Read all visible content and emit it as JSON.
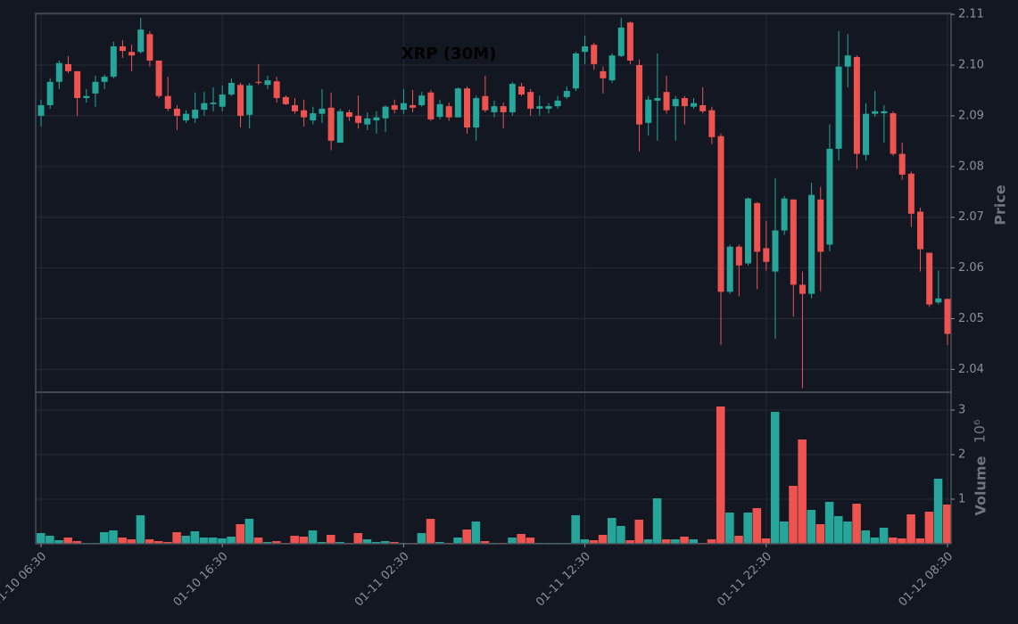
{
  "chart_data": {
    "type": "candlestick",
    "title": "XRP (30M)",
    "categories": [
      "01-10 06:30",
      null,
      null,
      null,
      null,
      null,
      null,
      null,
      null,
      null,
      null,
      null,
      null,
      null,
      null,
      null,
      null,
      null,
      null,
      null,
      "01-10 16:30",
      null,
      null,
      null,
      null,
      null,
      null,
      null,
      null,
      null,
      null,
      null,
      null,
      null,
      null,
      null,
      null,
      null,
      null,
      null,
      "01-11 02:30",
      null,
      null,
      null,
      null,
      null,
      null,
      null,
      null,
      null,
      null,
      null,
      null,
      null,
      null,
      null,
      null,
      null,
      null,
      null,
      "01-11 12:30",
      null,
      null,
      null,
      null,
      null,
      null,
      null,
      null,
      null,
      null,
      null,
      null,
      null,
      null,
      null,
      null,
      null,
      null,
      null,
      "01-11 22:30",
      null,
      null,
      null,
      null,
      null,
      null,
      null,
      null,
      null,
      null,
      null,
      null,
      null,
      null,
      null,
      null,
      null,
      null,
      null,
      "01-12 08:30"
    ],
    "open": [
      2.09,
      2.0921,
      2.0967,
      2.1002,
      2.0988,
      2.0935,
      2.0944,
      2.0967,
      2.0977,
      2.1037,
      2.1026,
      2.1026,
      2.1061,
      2.1009,
      2.0939,
      2.0914,
      2.0891,
      2.0895,
      2.0912,
      2.0923,
      2.0918,
      2.0942,
      2.0961,
      2.0902,
      2.0967,
      2.0961,
      2.0968,
      2.0937,
      2.0921,
      2.0911,
      2.0891,
      2.0904,
      2.0916,
      2.0847,
      2.0907,
      2.09,
      2.0883,
      2.0891,
      2.0895,
      2.0921,
      2.0912,
      2.0921,
      2.0921,
      2.0946,
      2.0898,
      2.0919,
      2.0897,
      2.0954,
      2.0877,
      2.0939,
      2.0907,
      2.0919,
      2.0907,
      2.0958,
      2.0947,
      2.0914,
      2.0914,
      2.0919,
      2.0937,
      2.0954,
      2.1026,
      2.104,
      2.0988,
      2.097,
      2.1018,
      2.1084,
      2.1,
      2.0886,
      2.093,
      2.0947,
      2.0919,
      2.0935,
      2.0918,
      2.0921,
      2.0911,
      2.086,
      2.0553,
      2.0642,
      2.0609,
      2.0728,
      2.0639,
      2.0593,
      2.0674,
      2.0735,
      2.0567,
      2.0549,
      2.0735,
      2.0646,
      2.0835,
      2.0997,
      2.1016,
      2.0823,
      2.0904,
      2.0905,
      2.0905,
      2.0825,
      2.0786,
      2.0711,
      2.063,
      2.0532,
      2.0539
    ],
    "high": [
      2.0932,
      2.0974,
      2.1009,
      2.1018,
      2.0988,
      2.0953,
      2.0979,
      2.0981,
      2.1046,
      2.1049,
      2.104,
      2.1093,
      2.1067,
      2.1009,
      2.0977,
      2.0921,
      2.0911,
      2.0946,
      2.0947,
      2.0956,
      2.096,
      2.0974,
      2.0965,
      2.0965,
      2.1002,
      2.0979,
      2.0977,
      2.094,
      2.0935,
      2.0932,
      2.0918,
      2.0953,
      2.0946,
      2.0914,
      2.0912,
      2.094,
      2.0907,
      2.0909,
      2.0921,
      2.0932,
      2.0953,
      2.0951,
      2.0947,
      2.0951,
      2.0932,
      2.0926,
      2.0956,
      2.0958,
      2.094,
      2.0979,
      2.093,
      2.0926,
      2.0967,
      2.0965,
      2.0953,
      2.094,
      2.0925,
      2.0939,
      2.0958,
      2.1026,
      2.1058,
      2.1044,
      2.0997,
      2.1023,
      2.1093,
      2.1086,
      2.1011,
      2.0939,
      2.1023,
      2.0979,
      2.0939,
      2.0939,
      2.0935,
      2.0956,
      2.0918,
      2.0865,
      2.0646,
      2.0646,
      2.0739,
      2.073,
      2.0693,
      2.0777,
      2.0742,
      2.0735,
      2.0593,
      2.0768,
      2.076,
      2.0883,
      2.1067,
      2.1061,
      2.1019,
      2.0925,
      2.0949,
      2.0921,
      2.0909,
      2.0847,
      2.079,
      2.0719,
      2.063,
      2.0595,
      2.0539
    ],
    "low": [
      2.0879,
      2.0914,
      2.0953,
      2.0984,
      2.09,
      2.0926,
      2.0918,
      2.0953,
      2.0974,
      2.1014,
      2.0988,
      2.1023,
      2.0997,
      2.0935,
      2.0909,
      2.0872,
      2.0886,
      2.0886,
      2.09,
      2.0909,
      2.0909,
      2.0939,
      2.0877,
      2.0875,
      2.0961,
      2.0953,
      2.0926,
      2.0921,
      2.0904,
      2.0879,
      2.0883,
      2.0886,
      2.0832,
      2.0847,
      2.089,
      2.0875,
      2.0872,
      2.0865,
      2.0868,
      2.0905,
      2.0904,
      2.0907,
      2.0918,
      2.089,
      2.0893,
      2.089,
      2.0897,
      2.0865,
      2.0851,
      2.0907,
      2.0897,
      2.0875,
      2.09,
      2.0939,
      2.09,
      2.09,
      2.0905,
      2.0914,
      2.0933,
      2.0949,
      2.1002,
      2.0991,
      2.0944,
      2.0965,
      2.1016,
      2.1002,
      2.083,
      2.0861,
      2.0851,
      2.0904,
      2.0851,
      2.0883,
      2.0914,
      2.0905,
      2.0844,
      2.0448,
      2.0549,
      2.0544,
      2.0605,
      2.0558,
      2.0595,
      2.046,
      2.0665,
      2.0504,
      2.0363,
      2.054,
      2.0554,
      2.0633,
      2.0812,
      2.0956,
      2.0795,
      2.0812,
      2.0898,
      2.0847,
      2.0821,
      2.0774,
      2.0681,
      2.0593,
      2.0523,
      2.0528,
      2.0448
    ],
    "close": [
      2.0921,
      2.0967,
      2.1004,
      2.0988,
      2.0935,
      2.0939,
      2.0967,
      2.0977,
      2.1037,
      2.1028,
      2.1019,
      2.107,
      2.1009,
      2.0939,
      2.0914,
      2.09,
      2.0904,
      2.0912,
      2.0925,
      2.0926,
      2.0942,
      2.0965,
      2.09,
      2.096,
      2.0965,
      2.097,
      2.0935,
      2.0923,
      2.0909,
      2.0897,
      2.0905,
      2.0914,
      2.0851,
      2.0909,
      2.0898,
      2.0886,
      2.0895,
      2.0897,
      2.0918,
      2.0912,
      2.0925,
      2.0916,
      2.094,
      2.0893,
      2.0923,
      2.0897,
      2.0954,
      2.0877,
      2.0935,
      2.0911,
      2.0919,
      2.0907,
      2.0963,
      2.0942,
      2.0914,
      2.0919,
      2.0919,
      2.093,
      2.0949,
      2.1023,
      2.1037,
      2.1002,
      2.0974,
      2.1019,
      2.1074,
      2.1009,
      2.0883,
      2.0932,
      2.0935,
      2.0911,
      2.0933,
      2.0919,
      2.0925,
      2.0909,
      2.0858,
      2.0553,
      2.0642,
      2.0605,
      2.0737,
      2.0632,
      2.0612,
      2.0674,
      2.0737,
      2.0567,
      2.0549,
      2.0744,
      2.0632,
      2.0835,
      2.0997,
      2.1019,
      2.0825,
      2.0904,
      2.0909,
      2.0909,
      2.0825,
      2.0784,
      2.0707,
      2.0637,
      2.0528,
      2.054,
      2.047
    ],
    "volume": [
      0.24,
      0.18,
      0.08,
      0.14,
      0.06,
      0.02,
      0.02,
      0.26,
      0.3,
      0.14,
      0.1,
      0.64,
      0.1,
      0.06,
      0.04,
      0.26,
      0.18,
      0.28,
      0.14,
      0.14,
      0.12,
      0.16,
      0.44,
      0.56,
      0.14,
      0.04,
      0.06,
      0.02,
      0.18,
      0.16,
      0.3,
      0.04,
      0.2,
      0.04,
      0.02,
      0.24,
      0.1,
      0.04,
      0.06,
      0.04,
      0.02,
      0.02,
      0.24,
      0.56,
      0.04,
      0.02,
      0.14,
      0.32,
      0.5,
      0.06,
      0.02,
      0.02,
      0.14,
      0.22,
      0.14,
      0.02,
      0.02,
      0.02,
      0.02,
      0.64,
      0.1,
      0.08,
      0.2,
      0.58,
      0.4,
      0.08,
      0.54,
      0.1,
      1.02,
      0.1,
      0.1,
      0.16,
      0.1,
      0.02,
      0.1,
      3.08,
      0.7,
      0.18,
      0.7,
      0.8,
      0.12,
      2.96,
      0.5,
      1.3,
      2.34,
      0.76,
      0.44,
      0.94,
      0.62,
      0.5,
      0.9,
      0.3,
      0.14,
      0.36,
      0.14,
      0.12,
      0.66,
      0.12,
      0.72,
      1.46,
      0.88
    ],
    "up_color": "#26a69a",
    "down_color": "#ef5350",
    "ylabel": "Price",
    "ylim": [
      2.0355,
      2.1102
    ],
    "yticks": [
      2.04,
      2.05,
      2.06,
      2.07,
      2.08,
      2.09,
      {
        "value": 2.1,
        "label": "2.10"
      },
      2.11
    ],
    "volume_label": "Volume",
    "volume_offset": "10⁶",
    "volume_ylim": [
      0,
      3.4
    ],
    "volume_yticks": [
      1,
      2,
      3
    ],
    "grid": true
  }
}
